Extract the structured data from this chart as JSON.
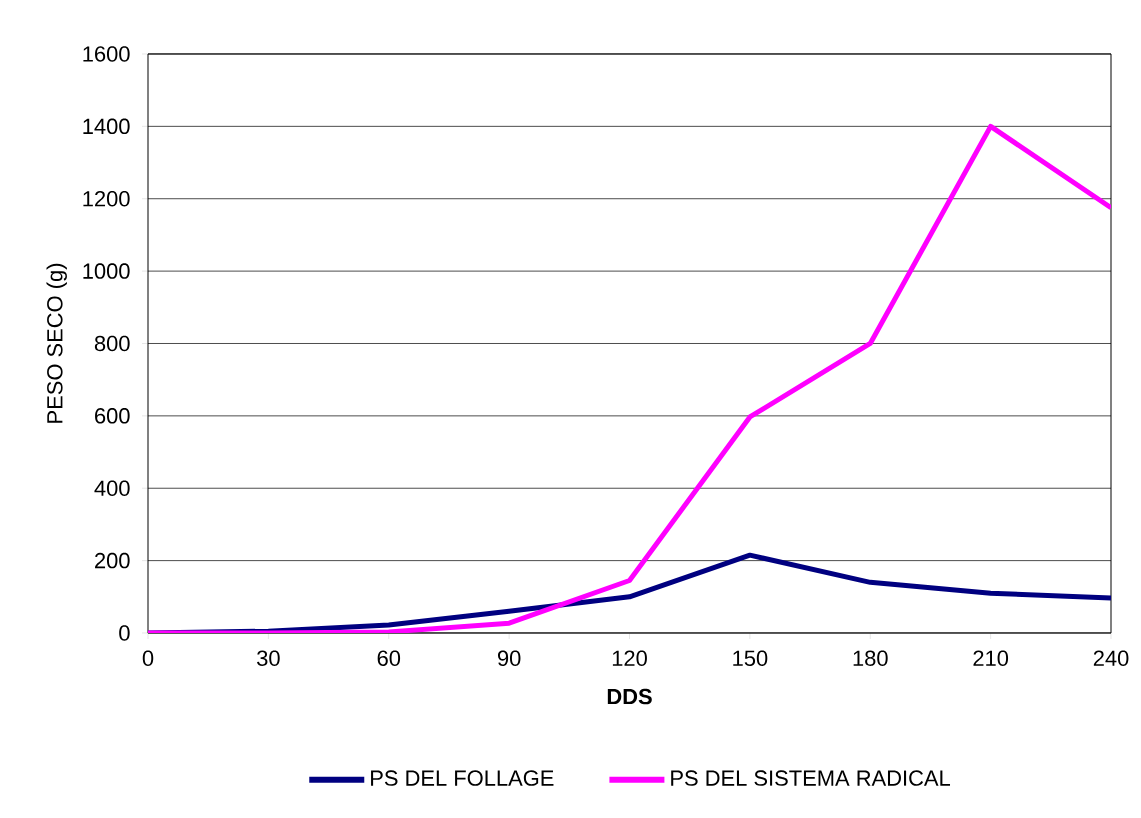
{
  "chart_data": {
    "type": "line",
    "xlabel": "DDS",
    "ylabel": "PESO SECO (g)",
    "x": [
      0,
      30,
      60,
      90,
      120,
      150,
      180,
      210,
      240
    ],
    "series": [
      {
        "name": "PS DEL FOLLAGE",
        "color": "#000080",
        "values": [
          0,
          5,
          22,
          60,
          100,
          215,
          140,
          110,
          97
        ]
      },
      {
        "name": "PS DEL SISTEMA RADICAL",
        "color": "#ff00ff",
        "values": [
          0,
          0,
          3,
          27,
          145,
          597,
          800,
          1400,
          1175
        ]
      }
    ],
    "xlim": [
      0,
      240
    ],
    "xticks": [
      0,
      30,
      60,
      90,
      120,
      150,
      180,
      210,
      240
    ],
    "ylim": [
      0,
      1600
    ],
    "yticks": [
      0,
      200,
      400,
      600,
      800,
      1000,
      1200,
      1400,
      1600
    ],
    "grid": "y",
    "legend": "bottom",
    "marker": "none",
    "line_style": "solid"
  }
}
